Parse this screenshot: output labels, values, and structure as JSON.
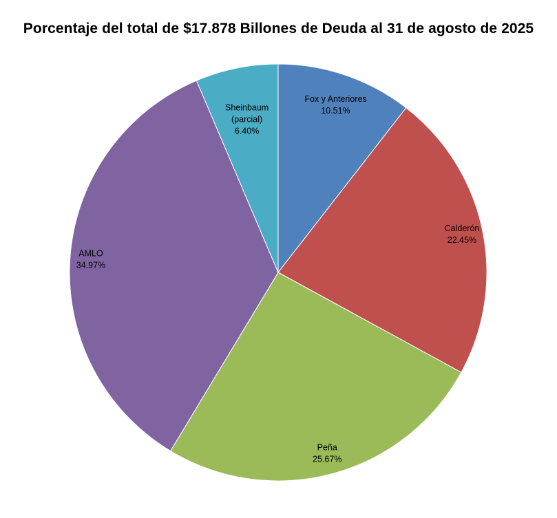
{
  "chart_data": {
    "type": "pie",
    "title": "Porcentaje del total de $17.878 Billones de Deuda al 31 de agosto de 2025",
    "slices": [
      {
        "label_lines": [
          "Fox y Anteriores"
        ],
        "value": 10.51,
        "value_label": "10.51%",
        "color": "#4F81BD"
      },
      {
        "label_lines": [
          "Calderón"
        ],
        "value": 22.45,
        "value_label": "22.45%",
        "color": "#C0504D"
      },
      {
        "label_lines": [
          "Peña"
        ],
        "value": 25.67,
        "value_label": "25.67%",
        "color": "#9BBB59"
      },
      {
        "label_lines": [
          "AMLO"
        ],
        "value": 34.97,
        "value_label": "34.97%",
        "color": "#8064A2"
      },
      {
        "label_lines": [
          "Sheinbaum",
          "(parcial)"
        ],
        "value": 6.4,
        "value_label": "6.40%",
        "color": "#4BACC6"
      }
    ]
  }
}
